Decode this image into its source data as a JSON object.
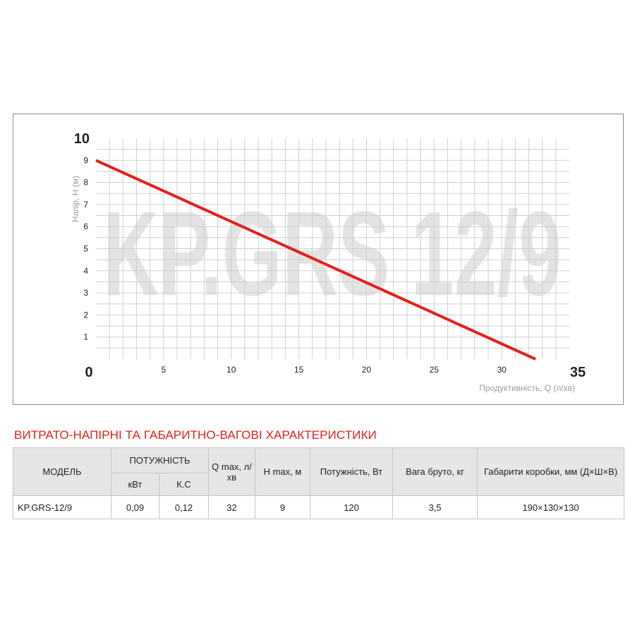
{
  "chart_data": {
    "type": "line",
    "watermark": "KP.GRS 12/9",
    "xlabel": "Продуктивність, Q (л/хв)",
    "ylabel": "Напір, H (м)",
    "xlim": [
      0,
      35
    ],
    "ylim": [
      0,
      10
    ],
    "x_ticks": [
      "0",
      "5",
      "10",
      "15",
      "20",
      "25",
      "30",
      "35"
    ],
    "y_ticks": [
      "0",
      "1",
      "2",
      "3",
      "4",
      "5",
      "6",
      "7",
      "8",
      "9",
      "10"
    ],
    "grid": true,
    "series": [
      {
        "x": [
          0,
          32.5
        ],
        "y": [
          9,
          0
        ],
        "color": "#e3201b"
      }
    ]
  },
  "table": {
    "title": "ВИТРАТО-НАПІРНІ ТА ГАБАРИТНО-ВАГОВІ ХАРАКТЕРИСТИКИ",
    "headers": {
      "model": "МОДЕЛЬ",
      "power_group": "ПОТУЖНІСТЬ",
      "kw": "кВт",
      "hp": "К.С",
      "qmax": "Q max, л/хв",
      "hmax": "H max, м",
      "watts": "Потужність, Вт",
      "weight": "Вага бруто, кг",
      "box": "Габарити коробки, мм (Д×Ш×В)"
    },
    "rows": [
      [
        "KP.GRS-12/9",
        "0,09",
        "0,12",
        "32",
        "9",
        "120",
        "3,5",
        "190×130×130"
      ]
    ]
  },
  "colors": {
    "curve": "#e3201b",
    "grid": "#cfcfcf",
    "watermark": "#e4e4e4",
    "header_bg": "#e6e6e6",
    "title": "#e3201b"
  }
}
